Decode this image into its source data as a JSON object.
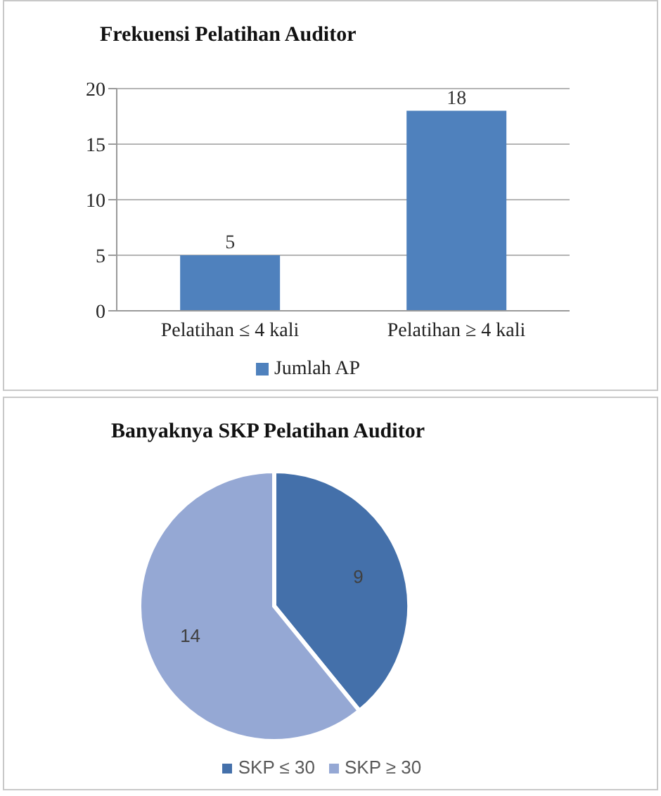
{
  "chart_data": [
    {
      "type": "bar",
      "title": "Frekuensi Pelatihan Auditor",
      "categories": [
        "Pelatihan ≤ 4 kali",
        "Pelatihan ≥ 4 kali"
      ],
      "series": [
        {
          "name": "Jumlah AP",
          "color": "#4f81bd",
          "values": [
            5,
            18
          ]
        }
      ],
      "ylim": [
        0,
        20
      ],
      "yticks": [
        0,
        5,
        10,
        15,
        20
      ],
      "grid": "y",
      "data_labels": true,
      "legend": "bottom"
    },
    {
      "type": "pie",
      "title": "Banyaknya SKP Pelatihan Auditor",
      "categories": [
        "SKP ≤ 30",
        "SKP ≥ 30"
      ],
      "values": [
        9,
        14
      ],
      "colors": [
        "#4470aa",
        "#95a8d4"
      ],
      "data_labels": true,
      "legend": "bottom"
    }
  ]
}
